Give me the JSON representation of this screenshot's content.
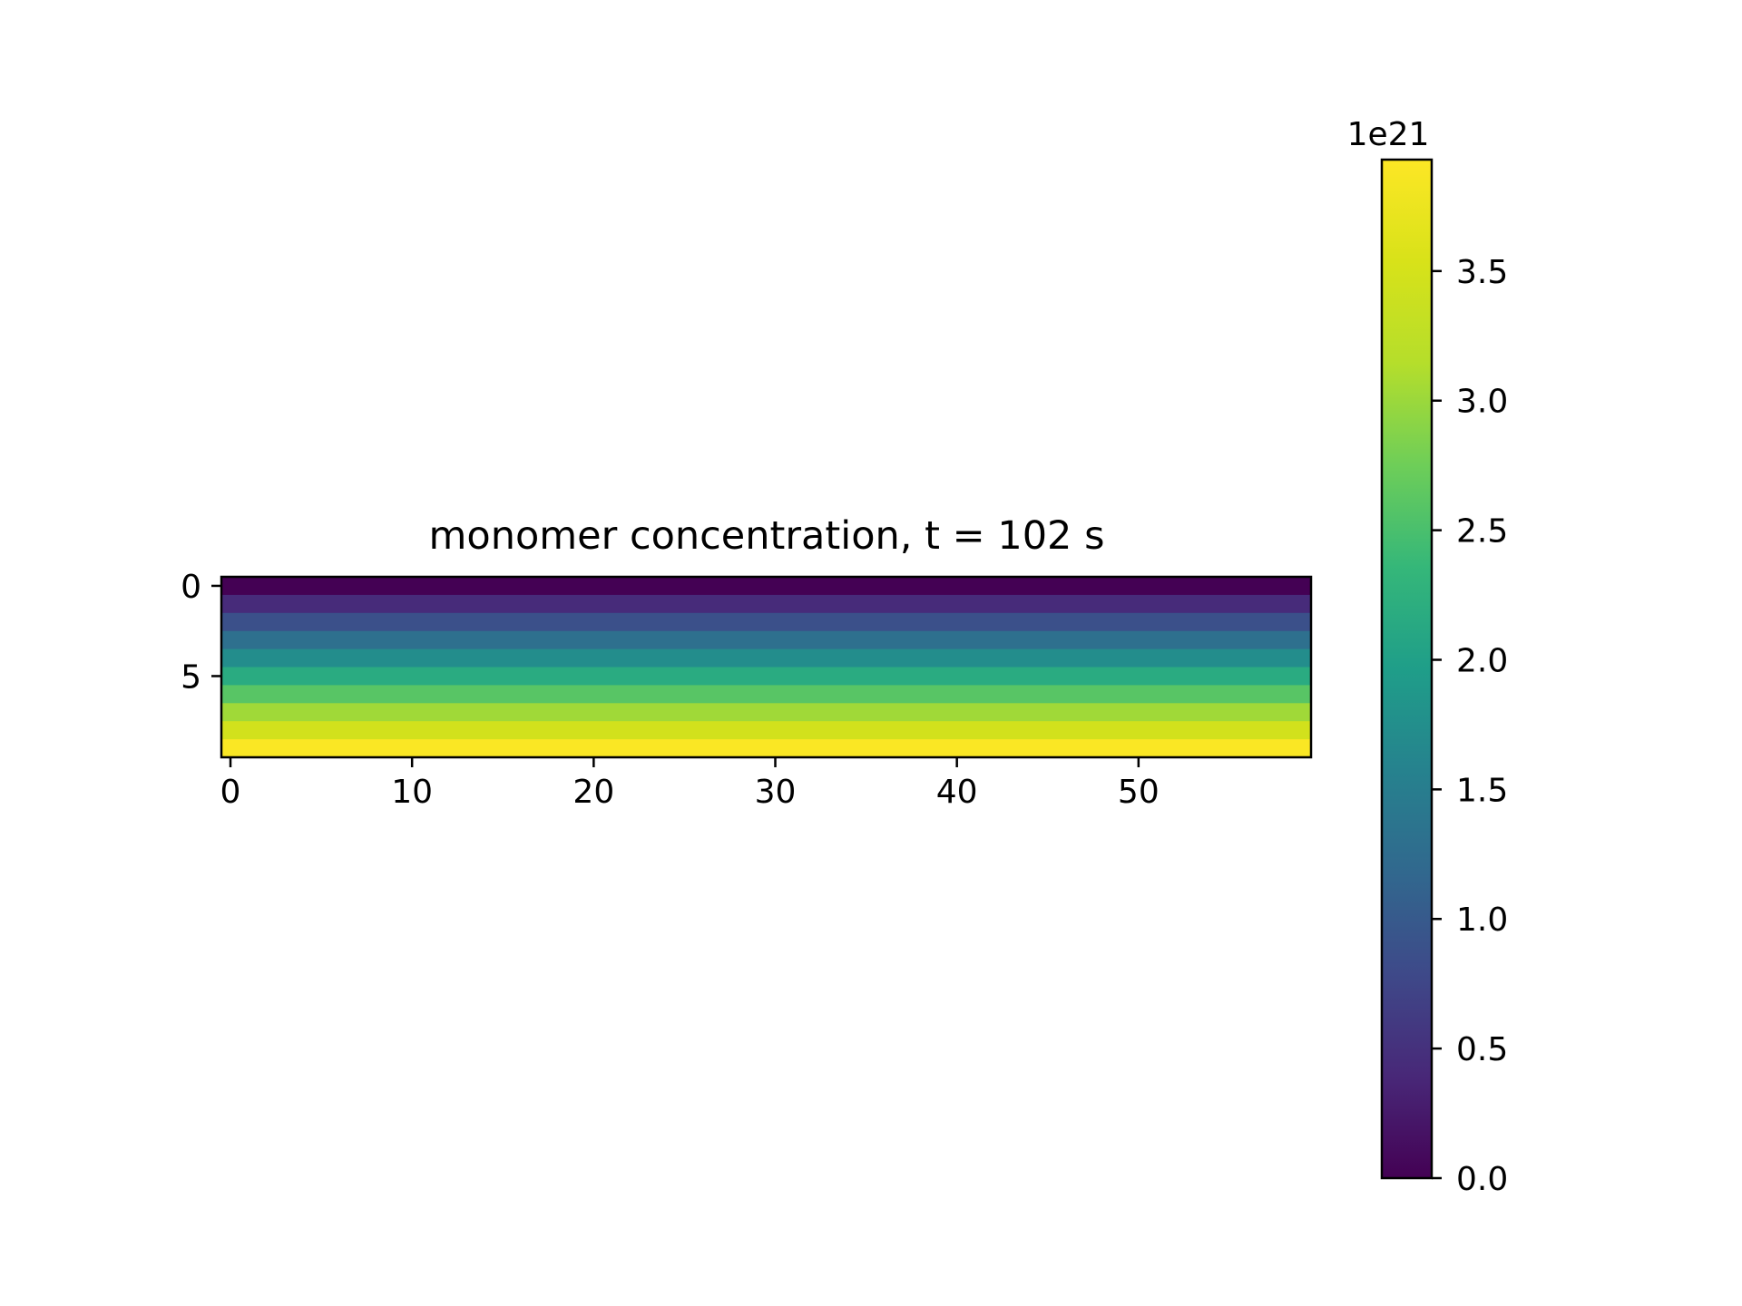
{
  "chart_data": {
    "type": "heatmap",
    "title": "monomer concentration, t = 102 s",
    "xlabel": "",
    "ylabel": "",
    "n_rows": 10,
    "n_cols": 60,
    "row_values": [
      0.0,
      0.43,
      0.87,
      1.3,
      1.73,
      2.17,
      2.6,
      3.03,
      3.47,
      3.9
    ],
    "row_values_scale": "1e21",
    "x_ticks": [
      0,
      10,
      20,
      30,
      40,
      50
    ],
    "y_ticks": [
      0,
      5
    ],
    "xlim": [
      -0.5,
      59.5
    ],
    "ylim": [
      9.5,
      -0.5
    ],
    "colormap": "viridis",
    "colorbar": {
      "offset_label": "1e21",
      "ticks": [
        0.0,
        0.5,
        1.0,
        1.5,
        2.0,
        2.5,
        3.0,
        3.5
      ],
      "tick_labels": [
        "0.0",
        "0.5",
        "1.0",
        "1.5",
        "2.0",
        "2.5",
        "3.0",
        "3.5"
      ],
      "vmin": 0.0,
      "vmax": 3.93
    }
  }
}
